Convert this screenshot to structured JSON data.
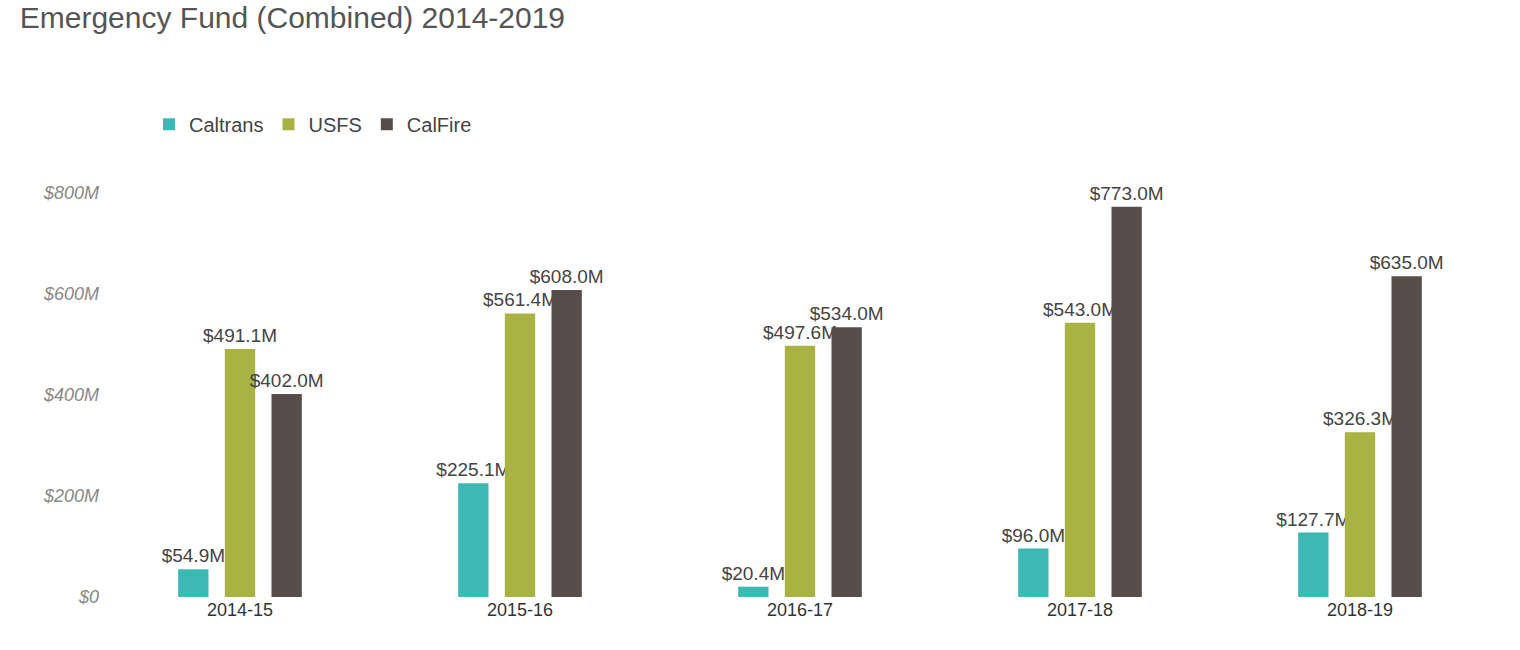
{
  "chart_data": {
    "type": "bar",
    "title": "Emergency Fund (Combined) 2014-2019",
    "categories": [
      "2014-15",
      "2015-16",
      "2016-17",
      "2017-18",
      "2018-19"
    ],
    "series": [
      {
        "name": "Caltrans",
        "color": "#3cb8b5",
        "values": [
          54.9,
          225.1,
          20.4,
          96.0,
          127.7
        ],
        "value_labels": [
          "$54.9M",
          "$225.1M",
          "$20.4M",
          "$96.0M",
          "$127.7M"
        ]
      },
      {
        "name": "USFS",
        "color": "#a8b343",
        "values": [
          491.1,
          561.4,
          497.6,
          543.0,
          326.3
        ],
        "value_labels": [
          "$491.1M",
          "$561.4M",
          "$497.6M",
          "$543.0M",
          "$326.3M"
        ]
      },
      {
        "name": "CalFire",
        "color": "#574e4b",
        "values": [
          402.0,
          608.0,
          534.0,
          773.0,
          635.0
        ],
        "value_labels": [
          "$402.0M",
          "$608.0M",
          "$534.0M",
          "$773.0M",
          "$635.0M"
        ]
      }
    ],
    "ylim": [
      0,
      800
    ],
    "yticks": [
      {
        "value": 0,
        "label": "$0"
      },
      {
        "value": 200,
        "label": "$200M"
      },
      {
        "value": 400,
        "label": "$400M"
      },
      {
        "value": 600,
        "label": "$600M"
      },
      {
        "value": 800,
        "label": "$800M"
      }
    ],
    "grid": false,
    "legend": "top-left",
    "data_labels": true
  }
}
